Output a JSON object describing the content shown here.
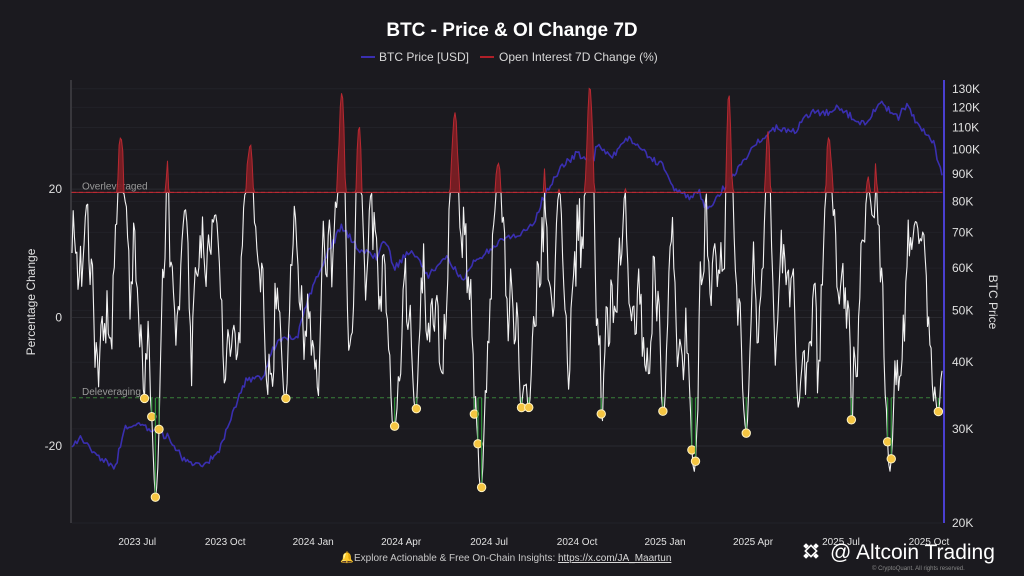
{
  "chart_data": {
    "type": "line",
    "title": "BTC - Price & OI Change 7D",
    "legend": [
      {
        "name": "BTC Price [USD]",
        "color": "#3a2fb0"
      },
      {
        "name": "Open Interest 7D Change (%)",
        "color": "#b01f28"
      }
    ],
    "x_ticks": [
      "2023 Jul",
      "2023 Oct",
      "2024 Jan",
      "2024 Apr",
      "2024 Jul",
      "2024 Oct",
      "2025 Jan",
      "2025 Apr",
      "2025 Jul",
      "2025 Oct"
    ],
    "left_axis": {
      "label": "Percentage Change",
      "ticks": [
        "20",
        "0",
        "-20"
      ],
      "range": [
        -32,
        37
      ]
    },
    "right_axis": {
      "label": "BTC Price",
      "scale": "log",
      "ticks": [
        "130K",
        "120K",
        "110K",
        "100K",
        "90K",
        "80K",
        "70K",
        "60K",
        "50K",
        "40K",
        "30K",
        "20K"
      ],
      "range": [
        20000,
        135000
      ]
    },
    "thresholds": [
      {
        "name": "Overleveraged",
        "value": 19.5,
        "color": "#c0393f"
      },
      {
        "name": "Deleveraging",
        "value": -12.5,
        "color": "#3d8a3d"
      }
    ],
    "price_series": {
      "name": "BTC Price [USD]",
      "t": [
        0,
        0.01,
        0.03,
        0.05,
        0.06,
        0.08,
        0.11,
        0.13,
        0.15,
        0.17,
        0.19,
        0.2,
        0.22,
        0.23,
        0.24,
        0.26,
        0.27,
        0.29,
        0.31,
        0.33,
        0.35,
        0.36,
        0.37,
        0.39,
        0.41,
        0.43,
        0.45,
        0.46,
        0.47,
        0.49,
        0.51,
        0.53,
        0.54,
        0.56,
        0.58,
        0.6,
        0.6,
        0.62,
        0.64,
        0.66,
        0.68,
        0.69,
        0.71,
        0.72,
        0.73,
        0.75,
        0.77,
        0.79,
        0.81,
        0.83,
        0.85,
        0.87,
        0.88,
        0.89,
        0.9,
        0.91,
        0.93,
        0.95,
        0.96,
        0.97,
        0.99,
        1.0
      ],
      "values": [
        28000,
        29000,
        26500,
        25500,
        30000,
        30500,
        29000,
        26000,
        25500,
        27500,
        34000,
        37000,
        37500,
        42000,
        44000,
        45000,
        52000,
        62000,
        72000,
        65000,
        63000,
        68000,
        60000,
        65000,
        58000,
        63000,
        57000,
        61000,
        63000,
        67000,
        69000,
        72000,
        80000,
        92000,
        98000,
        96000,
        103000,
        97000,
        105000,
        98000,
        93000,
        85000,
        81000,
        84000,
        77000,
        85000,
        95000,
        104000,
        110000,
        108000,
        118000,
        117000,
        120000,
        117000,
        114000,
        112000,
        122000,
        115000,
        122000,
        112000,
        103000,
        90000
      ]
    },
    "oi_series": {
      "name": "Open Interest 7D Change (%)",
      "events": [
        {
          "t": 0.056,
          "v": 28
        },
        {
          "t": 0.096,
          "v": -28
        },
        {
          "t": 0.13,
          "v": 17
        },
        {
          "t": 0.165,
          "v": 16
        },
        {
          "t": 0.205,
          "v": 27
        },
        {
          "t": 0.245,
          "v": -13
        },
        {
          "t": 0.31,
          "v": 35
        },
        {
          "t": 0.33,
          "v": 30
        },
        {
          "t": 0.37,
          "v": -17
        },
        {
          "t": 0.395,
          "v": -15
        },
        {
          "t": 0.44,
          "v": 32
        },
        {
          "t": 0.47,
          "v": -27
        },
        {
          "t": 0.49,
          "v": 24
        },
        {
          "t": 0.525,
          "v": -14
        },
        {
          "t": 0.56,
          "v": 20
        },
        {
          "t": 0.595,
          "v": 36
        },
        {
          "t": 0.68,
          "v": -15
        },
        {
          "t": 0.715,
          "v": -24
        },
        {
          "t": 0.755,
          "v": 35
        },
        {
          "t": 0.775,
          "v": -18
        },
        {
          "t": 0.8,
          "v": 29
        },
        {
          "t": 0.835,
          "v": -14
        },
        {
          "t": 0.87,
          "v": 28
        },
        {
          "t": 0.915,
          "v": 22
        },
        {
          "t": 0.94,
          "v": -24
        },
        {
          "t": 0.97,
          "v": 15
        },
        {
          "t": 0.995,
          "v": -15
        }
      ]
    }
  },
  "footer": {
    "note": "Explore Actionable & Free On-Chain Insights: ",
    "link": "https://x.com/JA_Maartun"
  },
  "brand": {
    "name": "@ Altcoin Trading",
    "watermark": "© CryptoQuant. All rights reserved."
  }
}
